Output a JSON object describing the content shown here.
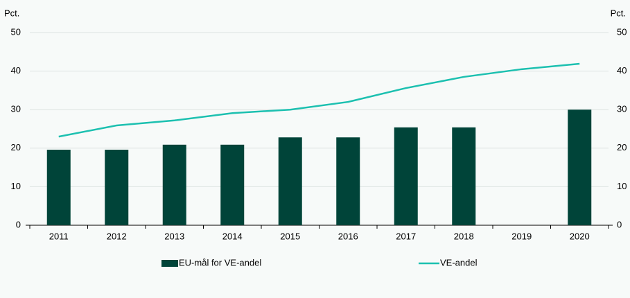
{
  "chart_data": {
    "type": "bar",
    "y_label": "Pct.",
    "y2_label": "Pct.",
    "categories": [
      "2011",
      "2012",
      "2013",
      "2014",
      "2015",
      "2016",
      "2017",
      "2018",
      "2019",
      "2020"
    ],
    "series": [
      {
        "name": "EU-mål for VE-andel",
        "type": "bar",
        "color": "#004439",
        "values": [
          19.6,
          19.6,
          20.9,
          20.9,
          22.8,
          22.8,
          25.4,
          25.4,
          null,
          30.0
        ]
      },
      {
        "name": "VE-andel",
        "type": "line",
        "axis": "y2",
        "color": "#1cc0b0",
        "values": [
          23.0,
          25.9,
          27.2,
          29.1,
          30.0,
          32.0,
          35.6,
          38.5,
          40.5,
          41.9
        ]
      }
    ],
    "ylim": [
      0,
      50
    ],
    "yticks": [
      0,
      10,
      20,
      30,
      40,
      50
    ],
    "y2lim": [
      0,
      50
    ],
    "y2ticks": [
      0,
      10,
      20,
      30,
      40,
      50
    ],
    "grid": true
  }
}
